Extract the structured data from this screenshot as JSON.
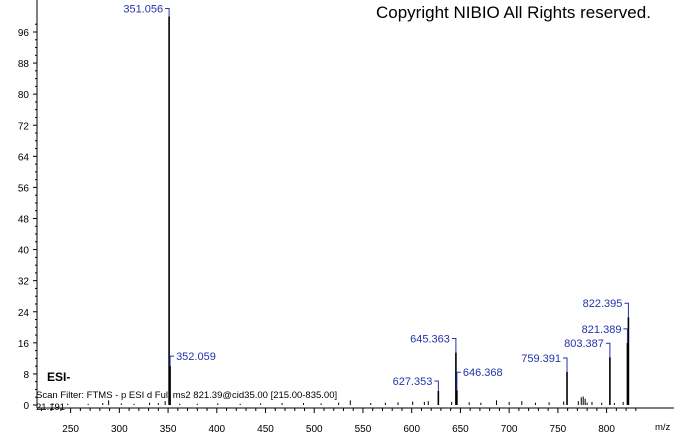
{
  "copyright": "Copyright NIBIO All Rights reserved.",
  "ion_mode": "ESI-",
  "scan_filter": "Scan Filter: FTMS - p ESI d Full ms2 821.39@cid35.00 [215.00-835.00]",
  "retention_time": "21.191",
  "x_unit": "m/z",
  "chart_data": {
    "type": "bar",
    "title": "",
    "xlabel": "m/z",
    "ylabel": "",
    "xlim": [
      215,
      835
    ],
    "ylim": [
      0,
      104
    ],
    "xticks": [
      250,
      300,
      350,
      400,
      450,
      500,
      550,
      600,
      650,
      700,
      750,
      800
    ],
    "yticks": [
      0,
      8,
      16,
      24,
      32,
      40,
      48,
      56,
      64,
      72,
      80,
      88,
      96
    ],
    "labeled_peaks": [
      {
        "mz": 351.056,
        "intensity": 100,
        "label": "351.056"
      },
      {
        "mz": 352.059,
        "intensity": 10,
        "label": "352.059"
      },
      {
        "mz": 627.353,
        "intensity": 3.6,
        "label": "627.353"
      },
      {
        "mz": 645.363,
        "intensity": 13.5,
        "label": "645.363"
      },
      {
        "mz": 646.368,
        "intensity": 3.8,
        "label": "646.368"
      },
      {
        "mz": 759.391,
        "intensity": 8.5,
        "label": "759.391"
      },
      {
        "mz": 803.387,
        "intensity": 12.3,
        "label": "803.387"
      },
      {
        "mz": 821.389,
        "intensity": 16,
        "label": "821.389"
      },
      {
        "mz": 822.395,
        "intensity": 22.6,
        "label": "822.395"
      }
    ],
    "minor_peaks": [
      {
        "mz": 232,
        "intensity": 0.4
      },
      {
        "mz": 247,
        "intensity": 0.3
      },
      {
        "mz": 268,
        "intensity": 0.3
      },
      {
        "mz": 283,
        "intensity": 0.5
      },
      {
        "mz": 289,
        "intensity": 1.2
      },
      {
        "mz": 302,
        "intensity": 0.4
      },
      {
        "mz": 315,
        "intensity": 0.3
      },
      {
        "mz": 331,
        "intensity": 0.6
      },
      {
        "mz": 340,
        "intensity": 0.5
      },
      {
        "mz": 347,
        "intensity": 1.0
      },
      {
        "mz": 362,
        "intensity": 0.3
      },
      {
        "mz": 380,
        "intensity": 0.3
      },
      {
        "mz": 401,
        "intensity": 0.4
      },
      {
        "mz": 424,
        "intensity": 0.3
      },
      {
        "mz": 445,
        "intensity": 0.4
      },
      {
        "mz": 467,
        "intensity": 0.5
      },
      {
        "mz": 489,
        "intensity": 0.5
      },
      {
        "mz": 507,
        "intensity": 0.4
      },
      {
        "mz": 525,
        "intensity": 0.6
      },
      {
        "mz": 537,
        "intensity": 1.2
      },
      {
        "mz": 558,
        "intensity": 0.5
      },
      {
        "mz": 573,
        "intensity": 0.6
      },
      {
        "mz": 586,
        "intensity": 0.7
      },
      {
        "mz": 601,
        "intensity": 0.9
      },
      {
        "mz": 613,
        "intensity": 0.8
      },
      {
        "mz": 617,
        "intensity": 1.0
      },
      {
        "mz": 641,
        "intensity": 0.8
      },
      {
        "mz": 659,
        "intensity": 0.7
      },
      {
        "mz": 671,
        "intensity": 0.6
      },
      {
        "mz": 687,
        "intensity": 1.2
      },
      {
        "mz": 700,
        "intensity": 0.8
      },
      {
        "mz": 713,
        "intensity": 1.0
      },
      {
        "mz": 727,
        "intensity": 0.6
      },
      {
        "mz": 741,
        "intensity": 0.7
      },
      {
        "mz": 756,
        "intensity": 0.9
      },
      {
        "mz": 771,
        "intensity": 1.0
      },
      {
        "mz": 774,
        "intensity": 2.0
      },
      {
        "mz": 776,
        "intensity": 2.2
      },
      {
        "mz": 778,
        "intensity": 1.6
      },
      {
        "mz": 780,
        "intensity": 0.6
      },
      {
        "mz": 785,
        "intensity": 0.8
      },
      {
        "mz": 795,
        "intensity": 0.6
      },
      {
        "mz": 808,
        "intensity": 0.5
      },
      {
        "mz": 817,
        "intensity": 0.8
      }
    ],
    "colors": {
      "axis": "#000000",
      "peak": "#000000",
      "label": "#2233aa"
    }
  }
}
